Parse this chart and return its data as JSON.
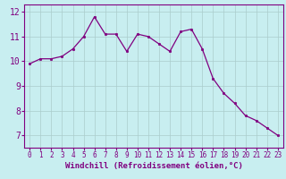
{
  "x": [
    0,
    1,
    2,
    3,
    4,
    5,
    6,
    7,
    8,
    9,
    10,
    11,
    12,
    13,
    14,
    15,
    16,
    17,
    18,
    19,
    20,
    21,
    22,
    23
  ],
  "y": [
    9.9,
    10.1,
    10.1,
    10.2,
    10.5,
    11.0,
    11.8,
    11.1,
    11.1,
    10.4,
    11.1,
    11.0,
    10.7,
    10.4,
    11.2,
    11.3,
    10.5,
    9.3,
    8.7,
    8.3,
    7.8,
    7.6,
    7.3,
    7.0
  ],
  "line_color": "#800080",
  "marker_color": "#800080",
  "bg_color": "#c8eef0",
  "grid_color": "#aacccc",
  "xlabel": "Windchill (Refroidissement éolien,°C)",
  "ylim": [
    6.5,
    12.3
  ],
  "yticks": [
    7,
    8,
    9,
    10,
    11,
    12
  ],
  "xticks": [
    0,
    1,
    2,
    3,
    4,
    5,
    6,
    7,
    8,
    9,
    10,
    11,
    12,
    13,
    14,
    15,
    16,
    17,
    18,
    19,
    20,
    21,
    22,
    23
  ],
  "tick_color": "#800080",
  "spine_color": "#800080"
}
